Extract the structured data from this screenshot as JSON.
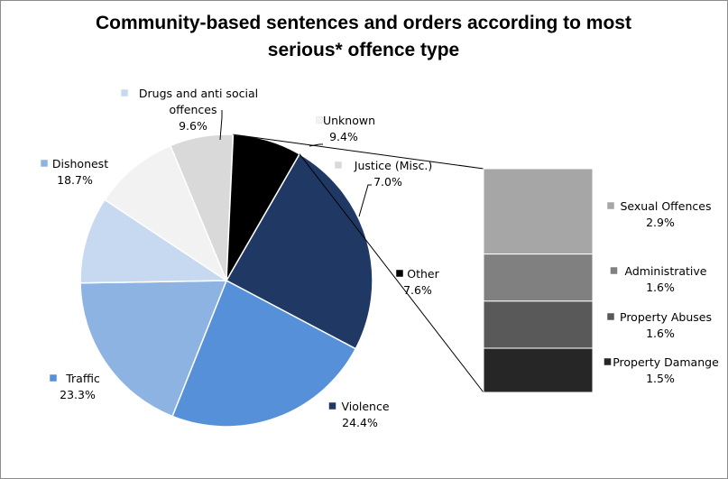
{
  "chart_data": {
    "type": "pie",
    "title": "Community-based sentences and orders according to most serious* offence type",
    "title_lines": [
      "Community-based sentences and orders according to most",
      "serious* offence type"
    ],
    "slices": [
      {
        "name": "Violence",
        "value": 24.4,
        "label": "24.4%",
        "color": "#1f3864"
      },
      {
        "name": "Traffic",
        "value": 23.3,
        "label": "23.3%",
        "color": "#5590d8"
      },
      {
        "name": "Dishonest",
        "value": 18.7,
        "label": "18.7%",
        "color": "#8db3e2"
      },
      {
        "name": "Drugs and anti social offences",
        "value": 9.6,
        "label": "9.6%",
        "color": "#c6d9f1",
        "name_lines": [
          "Drugs and anti social",
          "offences"
        ]
      },
      {
        "name": "Unknown",
        "value": 9.4,
        "label": "9.4%",
        "color": "#f2f2f2"
      },
      {
        "name": "Justice (Misc.)",
        "value": 7.0,
        "label": "7.0%",
        "color": "#d9d9d9"
      },
      {
        "name": "Other",
        "value": 7.6,
        "label": "7.6%",
        "color": "#000000"
      }
    ],
    "other_breakdown": [
      {
        "name": "Sexual Offences",
        "value": 2.9,
        "label": "2.9%",
        "color": "#a6a6a6"
      },
      {
        "name": "Administrative",
        "value": 1.6,
        "label": "1.6%",
        "color": "#808080"
      },
      {
        "name": "Property Abuses",
        "value": 1.6,
        "label": "1.6%",
        "color": "#595959"
      },
      {
        "name": "Property Damange",
        "value": 1.5,
        "label": "1.5%",
        "color": "#262626"
      }
    ],
    "legend": "none"
  }
}
